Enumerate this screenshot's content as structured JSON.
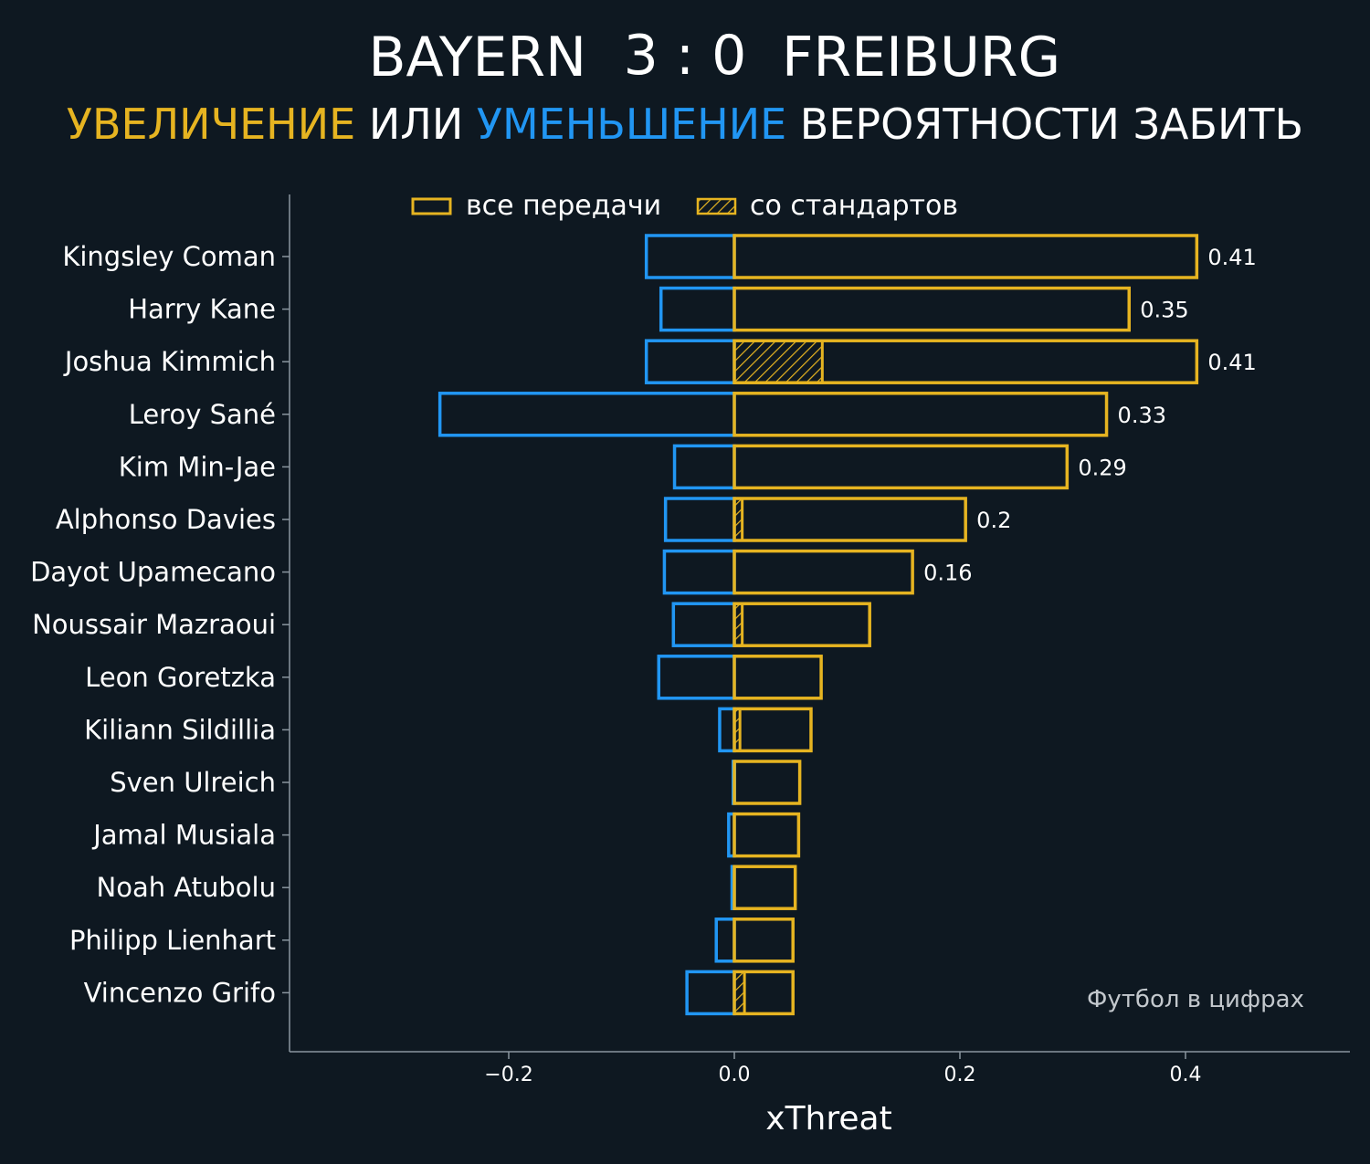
{
  "header": {
    "home_team": "BAYERN",
    "score": "3 : 0",
    "away_team": "FREIBURG",
    "subtitle": {
      "increase": "УВЕЛИЧЕНИЕ",
      "or": "ИЛИ",
      "decrease": "УМЕНЬШЕНИЕ",
      "rest": "ВЕРОЯТНОСТИ ЗАБИТЬ"
    }
  },
  "watermark": "Футбол в цифрах",
  "colors": {
    "background": "#0e1821",
    "increase": "#e6b421",
    "decrease": "#2196f3",
    "axis": "#8a969f"
  },
  "chart_data": {
    "type": "bar",
    "orientation": "horizontal",
    "xlabel": "xThreat",
    "xlim": [
      -0.4,
      0.54
    ],
    "xticks": [
      -0.2,
      0.0,
      0.2,
      0.4
    ],
    "xtick_labels": [
      "−0.2",
      "0.0",
      "0.2",
      "0.4"
    ],
    "legend": [
      {
        "label": "все передачи",
        "style": "outline"
      },
      {
        "label": "со стандартов",
        "style": "hatched"
      }
    ],
    "legend_position": "top-center",
    "categories": [
      "Kingsley Coman",
      "Harry Kane",
      "Joshua Kimmich",
      "Leroy Sané",
      "Kim Min-Jae",
      "Alphonso Davies",
      "Dayot Upamecano",
      "Noussair Mazraoui",
      "Leon Goretzka",
      "Kiliann Sildillia",
      "Sven Ulreich",
      "Jamal Musiala",
      "Noah Atubolu",
      "Philipp Lienhart",
      "Vincenzo Grifo"
    ],
    "series": [
      {
        "name": "увеличение (все передачи)",
        "values": [
          0.41,
          0.35,
          0.41,
          0.33,
          0.295,
          0.205,
          0.158,
          0.12,
          0.077,
          0.068,
          0.058,
          0.057,
          0.054,
          0.052,
          0.052
        ]
      },
      {
        "name": "увеличение (со стандартов)",
        "values": [
          0,
          0,
          0.078,
          0,
          0,
          0.007,
          0,
          0.007,
          0,
          0.005,
          0,
          0,
          0,
          0,
          0.009
        ]
      },
      {
        "name": "уменьшение",
        "values": [
          -0.078,
          -0.065,
          -0.078,
          -0.261,
          -0.053,
          -0.061,
          -0.062,
          -0.054,
          -0.067,
          -0.013,
          -0.001,
          -0.005,
          -0.002,
          -0.016,
          -0.042
        ]
      }
    ],
    "data_labels": [
      "0.41",
      "0.35",
      "0.41",
      "0.33",
      "0.29",
      "0.2",
      "0.16",
      "",
      "",
      "",
      "",
      "",
      "",
      "",
      ""
    ]
  }
}
